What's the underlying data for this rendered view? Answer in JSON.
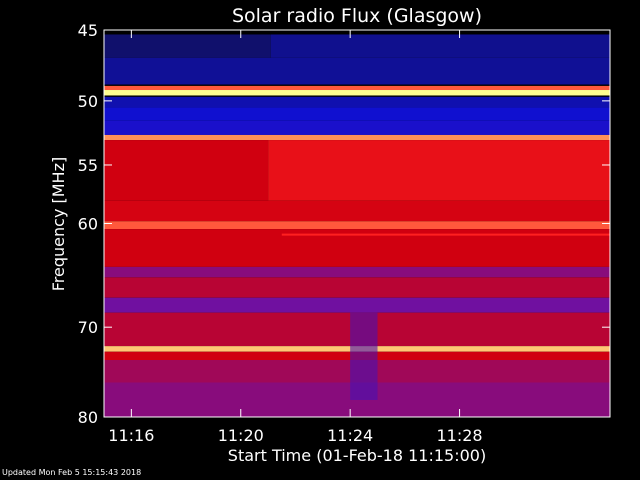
{
  "chart_data": {
    "type": "heatmap",
    "title": "Solar radio Flux (Glasgow)",
    "xlabel": "Start Time (01-Feb-18 11:15:00)",
    "ylabel": "Frequency [MHz]",
    "x_unit": "minutes",
    "xlim": [
      15.0,
      33.5
    ],
    "ylim": [
      45,
      80
    ],
    "x_ticks": [
      16,
      20,
      24,
      28
    ],
    "x_tick_labels": [
      "11:16",
      "11:20",
      "11:24",
      "11:28"
    ],
    "y_ticks": [
      45,
      50,
      55,
      60,
      70,
      80
    ],
    "y_tick_labels": [
      "45",
      "50",
      "55",
      "60",
      "70",
      "80"
    ],
    "y_scale": "log",
    "colorscale": [
      "#10102a",
      "#1010d0",
      "#7010a0",
      "#d00010",
      "#ff2020",
      "#ffff90"
    ],
    "bands": [
      {
        "freq": [
          45.3,
          46.9
        ],
        "level": 0.08,
        "x_break": 21.1,
        "level_after": 0.12
      },
      {
        "freq": [
          46.9,
          48.8
        ],
        "level": 0.13
      },
      {
        "freq": [
          48.9,
          49.2
        ],
        "level": 0.85
      },
      {
        "freq": [
          49.2,
          49.6
        ],
        "level": 1.0
      },
      {
        "freq": [
          49.7,
          50.5
        ],
        "level": 0.16
      },
      {
        "freq": [
          50.5,
          51.5
        ],
        "level": 0.2
      },
      {
        "freq": [
          51.5,
          52.6
        ],
        "level": 0.22
      },
      {
        "freq": [
          52.6,
          53.0
        ],
        "level": 0.9
      },
      {
        "freq": [
          53.0,
          58.0
        ],
        "level": 0.6,
        "x_break": 21.0,
        "level_after": 0.7
      },
      {
        "freq": [
          58.0,
          59.8
        ],
        "level": 0.62
      },
      {
        "freq": [
          59.8,
          60.5
        ],
        "level": 0.85
      },
      {
        "freq": [
          60.5,
          64.0
        ],
        "level": 0.6
      },
      {
        "freq": [
          64.0,
          65.0
        ],
        "level": 0.45
      },
      {
        "freq": [
          65.0,
          67.0
        ],
        "level": 0.55
      },
      {
        "freq": [
          67.0,
          68.5
        ],
        "level": 0.4
      },
      {
        "freq": [
          68.5,
          72.0
        ],
        "level": 0.55
      },
      {
        "freq": [
          72.0,
          72.6
        ],
        "level": 0.95
      },
      {
        "freq": [
          72.6,
          73.5
        ],
        "level": 0.6
      },
      {
        "freq": [
          73.5,
          76.0
        ],
        "level": 0.5
      },
      {
        "freq": [
          76.0,
          80.0
        ],
        "level": 0.45
      }
    ],
    "features": [
      {
        "type": "line",
        "freq": 61.0,
        "x_start": 21.5,
        "x_end": 33.5,
        "level": 0.8
      },
      {
        "type": "dark_region",
        "freq": [
          68.5,
          78.0
        ],
        "x": [
          24.0,
          25.0
        ],
        "level": 0.32
      }
    ]
  },
  "footer": {
    "updated": "Updated Mon Feb  5 15:15:43 2018"
  }
}
